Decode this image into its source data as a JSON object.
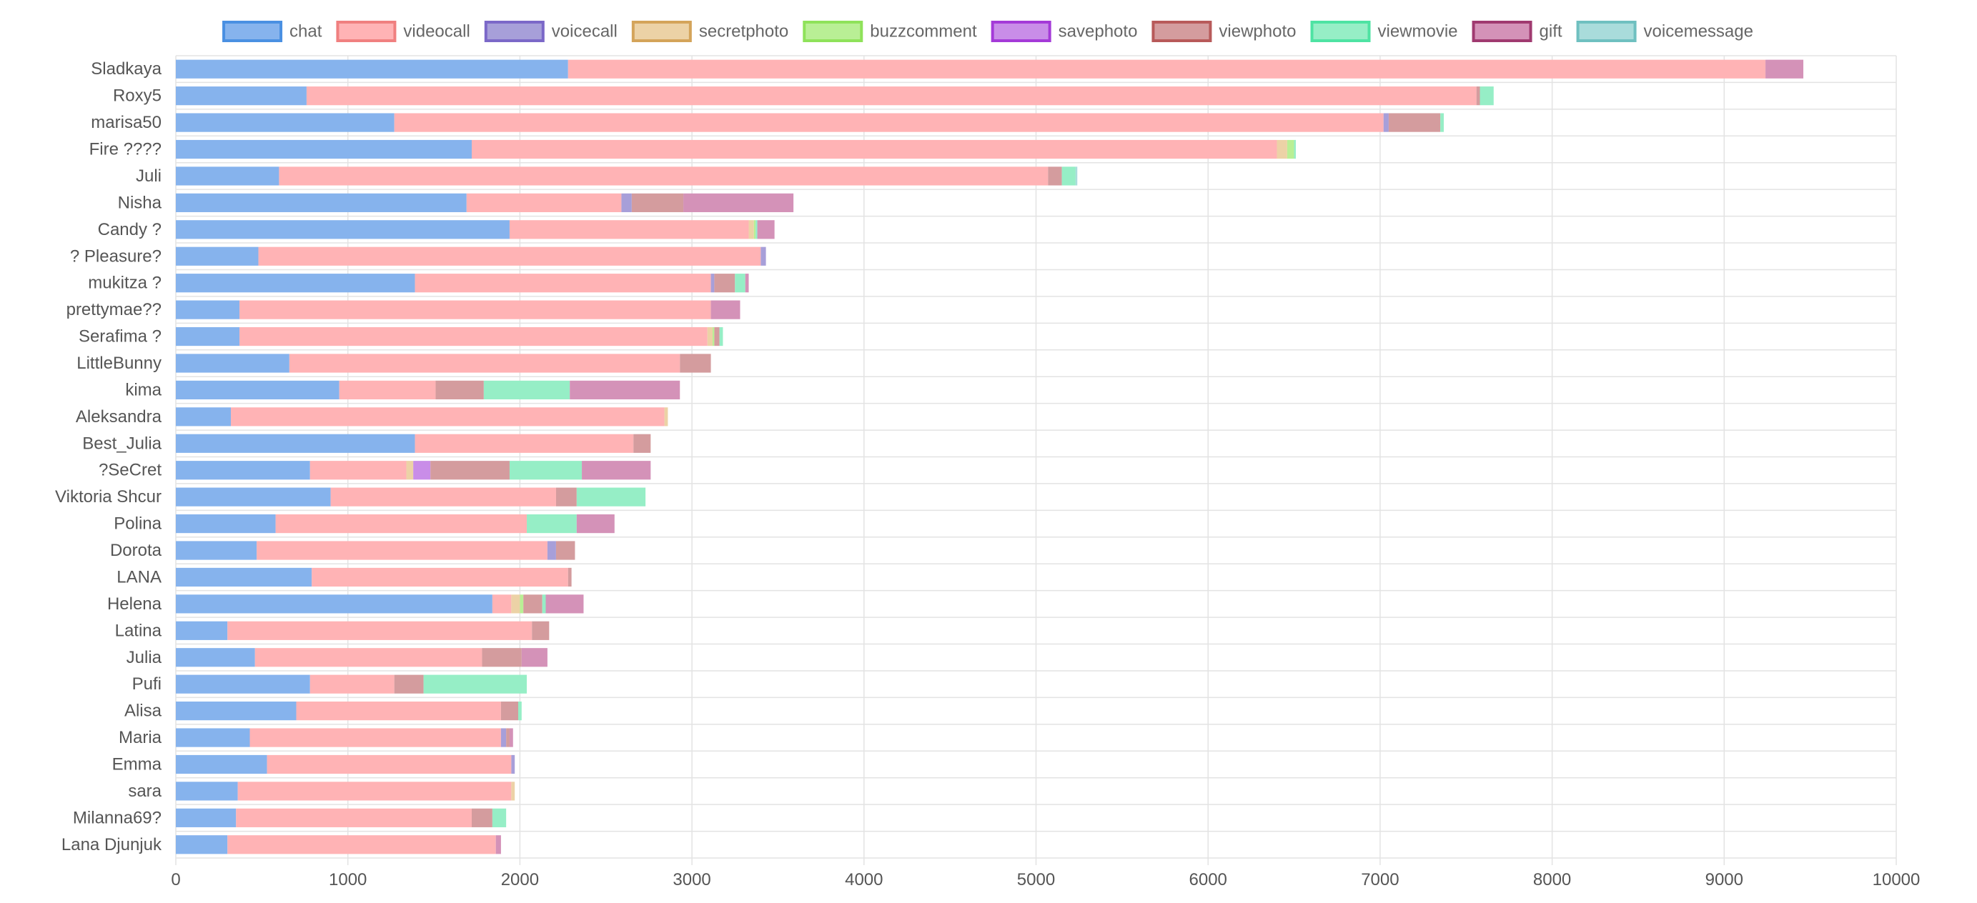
{
  "chart_data": {
    "type": "bar",
    "orientation": "horizontal",
    "stacked": true,
    "legend_position": "top",
    "grid": true,
    "xlim": [
      0,
      10000
    ],
    "x_ticks": [
      0,
      1000,
      2000,
      3000,
      4000,
      5000,
      6000,
      7000,
      8000,
      9000,
      10000
    ],
    "categories": [
      "Sladkaya",
      "Roxy5",
      "marisa50",
      "Fire ????",
      "Juli",
      "Nisha",
      "Candy ?",
      "? Pleasure?",
      "mukitza ?",
      "prettymae??",
      "Serafima ?",
      "LittleBunny",
      "kima",
      "Aleksandra",
      "Best_Julia",
      "?SeCret",
      "Viktoria Shcur",
      "Polina",
      "Dorota",
      "LANA",
      "Helena",
      "Latina",
      "Julia",
      "Pufi",
      "Alisa",
      "Maria",
      "Emma",
      "sara",
      "Milanna69?",
      "Lana Djunjuk"
    ],
    "series": [
      {
        "name": "chat",
        "color": "#4a90e2",
        "fill": "#86b3ed",
        "values": [
          2280,
          760,
          1270,
          1720,
          600,
          1690,
          1940,
          480,
          1390,
          370,
          370,
          660,
          950,
          320,
          1390,
          780,
          900,
          580,
          470,
          790,
          1840,
          300,
          460,
          780,
          700,
          430,
          530,
          360,
          350,
          300
        ]
      },
      {
        "name": "videocall",
        "color": "#f08080",
        "fill": "#ffb3b5",
        "values": [
          6960,
          6800,
          5750,
          4680,
          4470,
          900,
          1390,
          2920,
          1720,
          2740,
          2720,
          2270,
          560,
          2520,
          1270,
          560,
          1310,
          1460,
          1690,
          1490,
          110,
          1770,
          1320,
          490,
          1190,
          1460,
          1420,
          1590,
          1370,
          1560
        ]
      },
      {
        "name": "voicecall",
        "color": "#7b68c8",
        "fill": "#a79fd9",
        "values": [
          0,
          0,
          30,
          0,
          0,
          60,
          0,
          30,
          20,
          0,
          0,
          0,
          0,
          0,
          0,
          0,
          0,
          0,
          50,
          0,
          0,
          0,
          0,
          0,
          0,
          30,
          20,
          0,
          0,
          0
        ]
      },
      {
        "name": "secretphoto",
        "color": "#d4a45a",
        "fill": "#ecd2a6",
        "values": [
          0,
          0,
          0,
          60,
          0,
          0,
          30,
          0,
          0,
          0,
          30,
          0,
          0,
          20,
          0,
          40,
          0,
          0,
          0,
          0,
          50,
          0,
          0,
          0,
          0,
          0,
          0,
          20,
          0,
          0
        ]
      },
      {
        "name": "buzzcomment",
        "color": "#8fe25a",
        "fill": "#b9ef95",
        "values": [
          0,
          0,
          0,
          40,
          0,
          0,
          10,
          0,
          0,
          0,
          10,
          0,
          0,
          0,
          0,
          0,
          0,
          0,
          0,
          0,
          20,
          0,
          0,
          0,
          0,
          0,
          0,
          0,
          0,
          0
        ]
      },
      {
        "name": "savephoto",
        "color": "#a43ad8",
        "fill": "#c98de8",
        "values": [
          0,
          0,
          0,
          0,
          0,
          0,
          0,
          0,
          0,
          0,
          0,
          0,
          0,
          0,
          0,
          100,
          0,
          0,
          0,
          0,
          0,
          0,
          0,
          0,
          0,
          0,
          0,
          0,
          0,
          0
        ]
      },
      {
        "name": "viewphoto",
        "color": "#b85a5a",
        "fill": "#d49c9e",
        "values": [
          0,
          20,
          300,
          0,
          80,
          300,
          0,
          0,
          120,
          0,
          30,
          180,
          280,
          0,
          100,
          460,
          120,
          0,
          110,
          20,
          110,
          100,
          230,
          170,
          100,
          20,
          0,
          0,
          120,
          0
        ]
      },
      {
        "name": "viewmovie",
        "color": "#4ee3a3",
        "fill": "#96eec6",
        "values": [
          0,
          80,
          20,
          10,
          80,
          0,
          10,
          0,
          60,
          0,
          20,
          0,
          500,
          0,
          0,
          420,
          400,
          290,
          0,
          0,
          20,
          0,
          0,
          600,
          20,
          0,
          0,
          0,
          80,
          0
        ]
      },
      {
        "name": "gift",
        "color": "#a03a70",
        "fill": "#d492b8",
        "values": [
          220,
          0,
          0,
          0,
          0,
          640,
          100,
          0,
          20,
          170,
          0,
          0,
          640,
          0,
          0,
          400,
          0,
          220,
          0,
          0,
          220,
          0,
          150,
          0,
          0,
          20,
          0,
          0,
          0,
          30
        ]
      },
      {
        "name": "voicemessage",
        "color": "#6fc0c0",
        "fill": "#a9dcdb",
        "values": [
          0,
          0,
          0,
          0,
          10,
          0,
          0,
          0,
          0,
          0,
          0,
          0,
          0,
          0,
          0,
          0,
          0,
          0,
          0,
          0,
          0,
          0,
          0,
          0,
          0,
          0,
          0,
          0,
          0,
          0
        ]
      }
    ]
  }
}
